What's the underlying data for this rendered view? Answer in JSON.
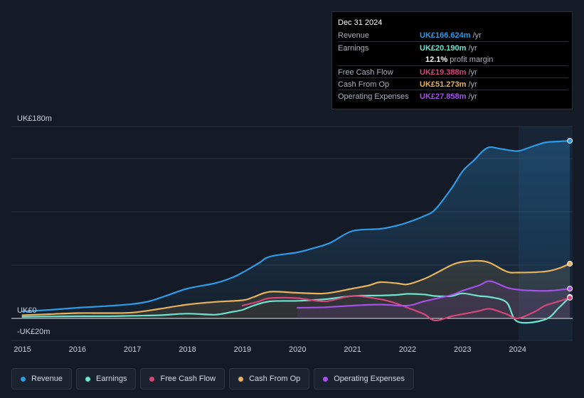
{
  "tooltip": {
    "date": "Dec 31 2024",
    "rows": {
      "revenue": {
        "label": "Revenue",
        "value": "UK£166.624m",
        "unit": "/yr"
      },
      "earnings": {
        "label": "Earnings",
        "value": "UK£20.190m",
        "unit": "/yr"
      },
      "margin": {
        "value": "12.1%",
        "label": "profit margin"
      },
      "fcf": {
        "label": "Free Cash Flow",
        "value": "UK£19.388m",
        "unit": "/yr"
      },
      "cfo": {
        "label": "Cash From Op",
        "value": "UK£51.273m",
        "unit": "/yr"
      },
      "opex": {
        "label": "Operating Expenses",
        "value": "UK£27.858m",
        "unit": "/yr"
      }
    }
  },
  "legend": {
    "revenue": "Revenue",
    "earnings": "Earnings",
    "fcf": "Free Cash Flow",
    "cfo": "Cash From Op",
    "opex": "Operating Expenses"
  },
  "colors": {
    "revenue": "#2e9be6",
    "earnings": "#6fe3cf",
    "fcf": "#d4477a",
    "cfo": "#e8b35c",
    "opex": "#a452e8",
    "background": "#151b26"
  },
  "chart_data": {
    "type": "line",
    "title": "",
    "y_axis_labels": [
      "UK£180m",
      "UK£0",
      "-UK£20m"
    ],
    "ylim": [
      -20,
      180
    ],
    "xlim": [
      2014.8,
      2025.0
    ],
    "x_ticks": [
      2015,
      2016,
      2017,
      2018,
      2019,
      2020,
      2021,
      2022,
      2023,
      2024
    ],
    "x_tick_labels": [
      "2015",
      "2016",
      "2017",
      "2018",
      "2019",
      "2020",
      "2021",
      "2022",
      "2023",
      "2024"
    ],
    "highlight_from": 2024.0,
    "series": [
      {
        "key": "revenue",
        "name": "Revenue",
        "area": true,
        "points": [
          [
            2015,
            6.5
          ],
          [
            2015.5,
            8
          ],
          [
            2016,
            10
          ],
          [
            2016.5,
            11.5
          ],
          [
            2017,
            13.5
          ],
          [
            2017.3,
            16
          ],
          [
            2017.6,
            21
          ],
          [
            2018,
            28
          ],
          [
            2018.5,
            33
          ],
          [
            2018.8,
            38
          ],
          [
            2019,
            43
          ],
          [
            2019.3,
            52
          ],
          [
            2019.5,
            58
          ],
          [
            2020,
            62
          ],
          [
            2020.3,
            66
          ],
          [
            2020.6,
            71
          ],
          [
            2021,
            82
          ],
          [
            2021.5,
            84
          ],
          [
            2021.8,
            87
          ],
          [
            2022,
            90
          ],
          [
            2022.3,
            96
          ],
          [
            2022.5,
            102
          ],
          [
            2022.8,
            122
          ],
          [
            2023,
            138
          ],
          [
            2023.2,
            148
          ],
          [
            2023.45,
            160
          ],
          [
            2023.7,
            159
          ],
          [
            2024,
            157
          ],
          [
            2024.25,
            161
          ],
          [
            2024.5,
            165
          ],
          [
            2024.75,
            166
          ],
          [
            2024.95,
            166.6
          ]
        ]
      },
      {
        "key": "earnings",
        "name": "Earnings",
        "area": false,
        "points": [
          [
            2015,
            1.5
          ],
          [
            2015.5,
            1.8
          ],
          [
            2016,
            2
          ],
          [
            2016.5,
            2
          ],
          [
            2017,
            2.5
          ],
          [
            2017.5,
            3
          ],
          [
            2018,
            4.5
          ],
          [
            2018.5,
            3.5
          ],
          [
            2018.8,
            6
          ],
          [
            2019,
            8
          ],
          [
            2019.2,
            12
          ],
          [
            2019.5,
            16
          ],
          [
            2020,
            16.5
          ],
          [
            2020.5,
            18
          ],
          [
            2021,
            21
          ],
          [
            2021.5,
            21.5
          ],
          [
            2021.8,
            22
          ],
          [
            2022,
            23
          ],
          [
            2022.3,
            22.5
          ],
          [
            2022.5,
            21
          ],
          [
            2022.8,
            21
          ],
          [
            2023,
            23.5
          ],
          [
            2023.3,
            21
          ],
          [
            2023.5,
            20
          ],
          [
            2023.8,
            15
          ],
          [
            2024,
            -3
          ],
          [
            2024.5,
            -1
          ],
          [
            2024.75,
            10
          ],
          [
            2024.95,
            20.2
          ]
        ]
      },
      {
        "key": "fcf",
        "name": "Free Cash Flow",
        "area": false,
        "points": [
          [
            2019,
            12
          ],
          [
            2019.3,
            16
          ],
          [
            2019.5,
            19
          ],
          [
            2020,
            19
          ],
          [
            2020.5,
            16
          ],
          [
            2021,
            21
          ],
          [
            2021.5,
            18
          ],
          [
            2021.8,
            14
          ],
          [
            2022,
            10
          ],
          [
            2022.3,
            4
          ],
          [
            2022.5,
            -2
          ],
          [
            2022.8,
            2
          ],
          [
            2023,
            4
          ],
          [
            2023.3,
            7
          ],
          [
            2023.5,
            9
          ],
          [
            2023.8,
            4
          ],
          [
            2024,
            0
          ],
          [
            2024.3,
            6
          ],
          [
            2024.5,
            12
          ],
          [
            2024.75,
            16
          ],
          [
            2024.95,
            19.4
          ]
        ]
      },
      {
        "key": "cfo",
        "name": "Cash From Op",
        "area": true,
        "points": [
          [
            2015,
            3
          ],
          [
            2015.5,
            4
          ],
          [
            2016,
            5
          ],
          [
            2016.5,
            5
          ],
          [
            2017,
            5.5
          ],
          [
            2017.5,
            9
          ],
          [
            2018,
            13
          ],
          [
            2018.5,
            15.5
          ],
          [
            2019,
            17
          ],
          [
            2019.2,
            20
          ],
          [
            2019.5,
            25
          ],
          [
            2020,
            24
          ],
          [
            2020.5,
            23.5
          ],
          [
            2021,
            28
          ],
          [
            2021.3,
            31
          ],
          [
            2021.5,
            34
          ],
          [
            2021.8,
            33
          ],
          [
            2022,
            32
          ],
          [
            2022.3,
            37
          ],
          [
            2022.5,
            42
          ],
          [
            2022.8,
            50
          ],
          [
            2023,
            53
          ],
          [
            2023.3,
            54
          ],
          [
            2023.5,
            52
          ],
          [
            2023.8,
            44
          ],
          [
            2024,
            43
          ],
          [
            2024.5,
            44
          ],
          [
            2024.75,
            47
          ],
          [
            2024.95,
            51.3
          ]
        ]
      },
      {
        "key": "opex",
        "name": "Operating Expenses",
        "area": true,
        "points": [
          [
            2020,
            10
          ],
          [
            2020.5,
            10.5
          ],
          [
            2021,
            12
          ],
          [
            2021.5,
            13
          ],
          [
            2022,
            12
          ],
          [
            2022.3,
            16
          ],
          [
            2022.8,
            22
          ],
          [
            2023,
            26
          ],
          [
            2023.3,
            31
          ],
          [
            2023.5,
            35
          ],
          [
            2023.8,
            29
          ],
          [
            2024,
            27
          ],
          [
            2024.3,
            26
          ],
          [
            2024.6,
            26
          ],
          [
            2024.95,
            27.9
          ]
        ]
      }
    ]
  }
}
